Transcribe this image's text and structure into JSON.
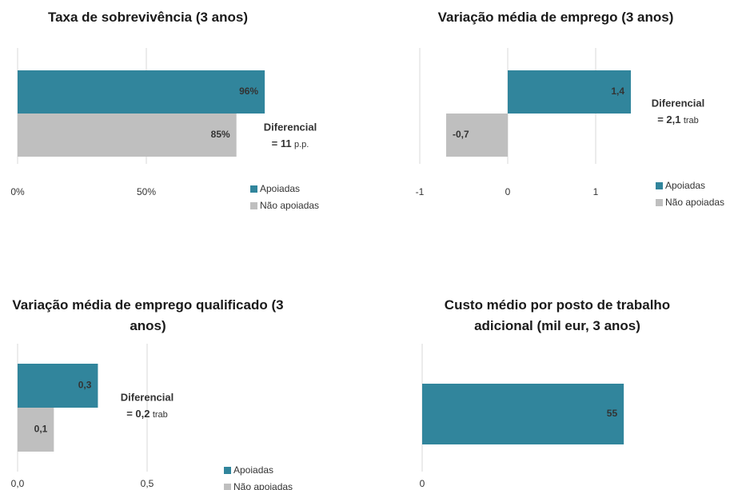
{
  "chart_data": [
    {
      "type": "hbar",
      "title": "Taxa de sobrevivência (3 anos)",
      "series": [
        {
          "name": "Apoiadas",
          "color": "#31859c",
          "values": [
            96
          ],
          "value_labels": [
            "96%"
          ]
        },
        {
          "name": "Não apoiadas",
          "color": "#bfbfbf",
          "values": [
            85
          ],
          "value_labels": [
            "85%"
          ]
        }
      ],
      "xlim": [
        0,
        100
      ],
      "xticks": [
        {
          "value": 0,
          "label": "0%"
        },
        {
          "value": 50,
          "label": "50%"
        }
      ],
      "grid": true,
      "annotation": {
        "title": "Diferencial",
        "value": "= 11",
        "unit": "p.p."
      }
    },
    {
      "type": "hbar",
      "title": "Variação média de emprego (3 anos)",
      "series": [
        {
          "name": "Apoiadas",
          "color": "#31859c",
          "values": [
            1.4
          ],
          "value_labels": [
            "1,4"
          ]
        },
        {
          "name": "Não apoiadas",
          "color": "#bfbfbf",
          "values": [
            -0.7
          ],
          "value_labels": [
            "-0,7"
          ]
        }
      ],
      "xlim": [
        -1,
        1.5
      ],
      "xticks": [
        -1,
        0,
        1
      ],
      "grid": true,
      "annotation": {
        "title": "Diferencial",
        "value": "= 2,1",
        "unit": "trab"
      }
    },
    {
      "type": "hbar",
      "title": "Variação média de emprego qualificado (3 anos)",
      "series": [
        {
          "name": "Apoiadas",
          "color": "#31859c",
          "values": [
            0.31
          ],
          "value_labels": [
            "0,3"
          ]
        },
        {
          "name": "Não apoiadas",
          "color": "#bfbfbf",
          "values": [
            0.14
          ],
          "value_labels": [
            "0,1"
          ]
        }
      ],
      "xlim": [
        0,
        1
      ],
      "xticks": [
        {
          "value": 0,
          "label": "0,0"
        },
        {
          "value": 0.5,
          "label": "0,5"
        }
      ],
      "grid": true,
      "annotation": {
        "title": "Diferencial",
        "value": "= 0,2",
        "unit": "trab"
      }
    },
    {
      "type": "hbar",
      "title": "Custo médio por posto de trabalho adicional (mil eur, 3 anos)",
      "series": [
        {
          "color": "#31859c",
          "values": [
            55
          ]
        }
      ],
      "xlim": [
        0,
        65
      ],
      "xticks": [
        0
      ],
      "grid": true
    }
  ]
}
